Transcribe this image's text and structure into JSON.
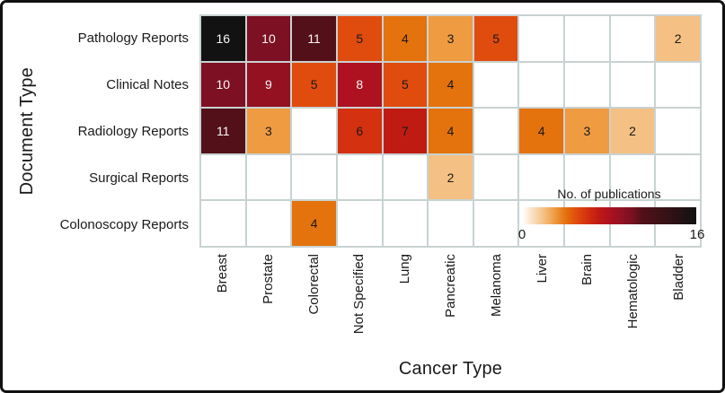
{
  "chart_data": {
    "type": "heatmap",
    "xlabel": "Cancer Type",
    "ylabel": "Document Type",
    "columns": [
      "Breast",
      "Prostate",
      "Colorectal",
      "Not Specified",
      "Lung",
      "Pancreatic",
      "Melanoma",
      "Liver",
      "Brain",
      "Hematologic",
      "Bladder"
    ],
    "rows": [
      "Pathology Reports",
      "Clinical Notes",
      "Radiology Reports",
      "Surgical Reports",
      "Colonoscopy Reports"
    ],
    "values": [
      [
        16,
        10,
        11,
        5,
        4,
        3,
        5,
        null,
        null,
        null,
        2
      ],
      [
        10,
        9,
        5,
        8,
        5,
        4,
        null,
        null,
        null,
        null,
        null
      ],
      [
        11,
        3,
        null,
        6,
        7,
        4,
        null,
        4,
        3,
        2,
        null
      ],
      [
        null,
        null,
        null,
        null,
        null,
        2,
        null,
        null,
        null,
        null,
        null
      ],
      [
        null,
        null,
        4,
        null,
        null,
        null,
        null,
        null,
        null,
        null,
        null
      ]
    ],
    "colorbar": {
      "label": "No. of publications",
      "min": "0",
      "max": "16",
      "min_value": 0,
      "max_value": 16
    },
    "value_colors": {
      "0": "#ffffff",
      "2": "#f4c083",
      "3": "#ee9b42",
      "4": "#e4720d",
      "5": "#e04b0e",
      "6": "#d43110",
      "7": "#c01b13",
      "8": "#ae1120",
      "9": "#941122",
      "10": "#7d1123",
      "11": "#531019",
      "16": "#121212"
    },
    "light_text_threshold": 8,
    "grid_line_color": "#c9d2d2",
    "empty_cell_color": "#ffffff",
    "dark_text_color": "#1a1a1a",
    "light_text_color": "#f8f8f8",
    "legend_position": "inside lower right"
  }
}
